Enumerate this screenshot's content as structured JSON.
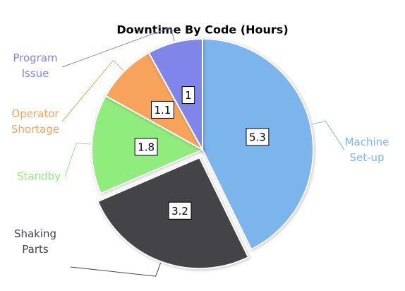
{
  "chart_data": {
    "type": "pie",
    "title": "Downtime By Code (Hours)",
    "categories": [
      "Machine Set-up",
      "Shaking Parts",
      "Standby",
      "Operator Shortage",
      "Program Issue"
    ],
    "values": [
      5.3,
      3.2,
      1.8,
      1.1,
      1
    ],
    "colors": [
      "#7cb5ec",
      "#434348",
      "#90ed7d",
      "#f7a35c",
      "#8085e9"
    ],
    "exploded": [
      1
    ]
  }
}
